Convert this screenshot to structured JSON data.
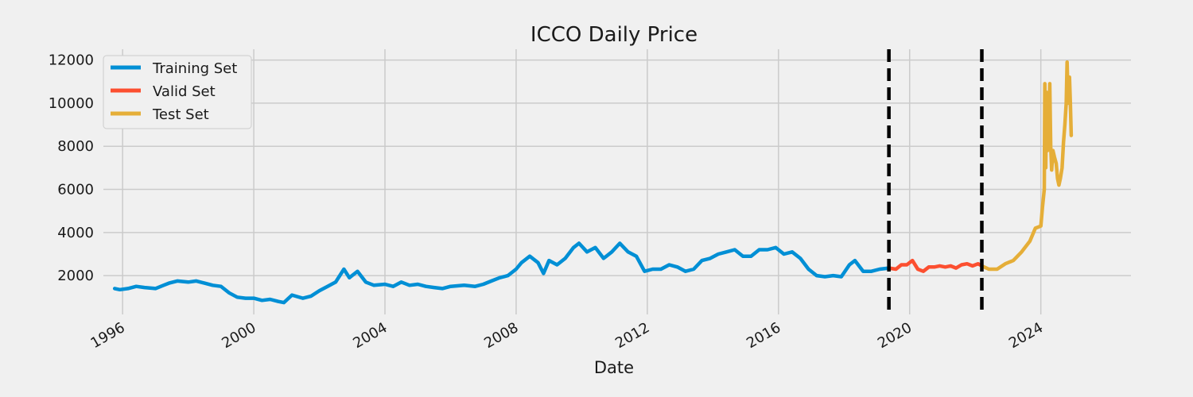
{
  "chart_data": {
    "type": "line",
    "title": "ICCO Daily Price",
    "xlabel": "Date",
    "ylabel": "",
    "x_ticks": [
      "1996",
      "2000",
      "2004",
      "2008",
      "2012",
      "2016",
      "2020",
      "2024"
    ],
    "y_ticks": [
      "2000",
      "4000",
      "6000",
      "8000",
      "10000",
      "12000"
    ],
    "xlim": [
      "1995-06-01",
      "2026-10-01"
    ],
    "ylim": [
      200,
      12500
    ],
    "grid": true,
    "legend_position": "top-left",
    "split_markers": [
      "2019-05-15",
      "2022-03-15"
    ],
    "series": [
      {
        "name": "Training Set",
        "color": "#008fd5",
        "points": [
          [
            "1995-10-05",
            1400
          ],
          [
            "1995-12-01",
            1350
          ],
          [
            "1996-03-01",
            1400
          ],
          [
            "1996-06-01",
            1500
          ],
          [
            "1996-09-01",
            1450
          ],
          [
            "1997-01-01",
            1400
          ],
          [
            "1997-04-01",
            1550
          ],
          [
            "1997-06-01",
            1650
          ],
          [
            "1997-09-01",
            1750
          ],
          [
            "1998-01-01",
            1700
          ],
          [
            "1998-04-01",
            1750
          ],
          [
            "1998-07-01",
            1650
          ],
          [
            "1998-10-01",
            1550
          ],
          [
            "1999-01-01",
            1500
          ],
          [
            "1999-04-01",
            1200
          ],
          [
            "1999-07-01",
            1000
          ],
          [
            "1999-10-01",
            950
          ],
          [
            "2000-01-01",
            950
          ],
          [
            "2000-04-01",
            850
          ],
          [
            "2000-07-01",
            900
          ],
          [
            "2000-10-01",
            800
          ],
          [
            "2000-12-01",
            750
          ],
          [
            "2001-03-01",
            1100
          ],
          [
            "2001-07-01",
            950
          ],
          [
            "2001-10-01",
            1050
          ],
          [
            "2002-01-01",
            1300
          ],
          [
            "2002-04-01",
            1500
          ],
          [
            "2002-07-01",
            1700
          ],
          [
            "2002-10-01",
            2300
          ],
          [
            "2002-12-01",
            1900
          ],
          [
            "2003-03-01",
            2200
          ],
          [
            "2003-06-01",
            1700
          ],
          [
            "2003-09-01",
            1550
          ],
          [
            "2004-01-01",
            1600
          ],
          [
            "2004-04-01",
            1500
          ],
          [
            "2004-07-01",
            1700
          ],
          [
            "2004-10-01",
            1550
          ],
          [
            "2005-01-01",
            1600
          ],
          [
            "2005-04-01",
            1500
          ],
          [
            "2005-07-01",
            1450
          ],
          [
            "2005-10-01",
            1400
          ],
          [
            "2006-01-01",
            1500
          ],
          [
            "2006-06-01",
            1550
          ],
          [
            "2006-10-01",
            1500
          ],
          [
            "2007-01-01",
            1600
          ],
          [
            "2007-04-01",
            1750
          ],
          [
            "2007-07-01",
            1900
          ],
          [
            "2007-10-01",
            2000
          ],
          [
            "2008-01-01",
            2300
          ],
          [
            "2008-03-01",
            2600
          ],
          [
            "2008-06-01",
            2900
          ],
          [
            "2008-09-01",
            2600
          ],
          [
            "2008-11-01",
            2100
          ],
          [
            "2009-01-01",
            2700
          ],
          [
            "2009-04-01",
            2500
          ],
          [
            "2009-07-01",
            2800
          ],
          [
            "2009-10-01",
            3300
          ],
          [
            "2009-12-01",
            3500
          ],
          [
            "2010-03-01",
            3100
          ],
          [
            "2010-06-01",
            3300
          ],
          [
            "2010-09-01",
            2800
          ],
          [
            "2010-12-01",
            3100
          ],
          [
            "2011-03-01",
            3500
          ],
          [
            "2011-06-01",
            3100
          ],
          [
            "2011-09-01",
            2900
          ],
          [
            "2011-12-01",
            2200
          ],
          [
            "2012-03-01",
            2300
          ],
          [
            "2012-06-01",
            2300
          ],
          [
            "2012-09-01",
            2500
          ],
          [
            "2012-12-01",
            2400
          ],
          [
            "2013-03-01",
            2200
          ],
          [
            "2013-06-01",
            2300
          ],
          [
            "2013-09-01",
            2700
          ],
          [
            "2013-12-01",
            2800
          ],
          [
            "2014-03-01",
            3000
          ],
          [
            "2014-06-01",
            3100
          ],
          [
            "2014-09-01",
            3200
          ],
          [
            "2014-12-01",
            2900
          ],
          [
            "2015-03-01",
            2900
          ],
          [
            "2015-06-01",
            3200
          ],
          [
            "2015-09-01",
            3200
          ],
          [
            "2015-12-01",
            3300
          ],
          [
            "2016-03-01",
            3000
          ],
          [
            "2016-06-01",
            3100
          ],
          [
            "2016-09-01",
            2800
          ],
          [
            "2016-12-01",
            2300
          ],
          [
            "2017-03-01",
            2000
          ],
          [
            "2017-06-01",
            1950
          ],
          [
            "2017-09-01",
            2000
          ],
          [
            "2017-12-01",
            1950
          ],
          [
            "2018-03-01",
            2500
          ],
          [
            "2018-05-01",
            2700
          ],
          [
            "2018-08-01",
            2200
          ],
          [
            "2018-11-01",
            2200
          ],
          [
            "2019-02-01",
            2300
          ],
          [
            "2019-05-15",
            2350
          ]
        ]
      },
      {
        "name": "Valid Set",
        "color": "#fc4f30",
        "points": [
          [
            "2019-05-15",
            2350
          ],
          [
            "2019-08-01",
            2300
          ],
          [
            "2019-10-01",
            2500
          ],
          [
            "2019-12-01",
            2500
          ],
          [
            "2020-02-01",
            2700
          ],
          [
            "2020-04-01",
            2300
          ],
          [
            "2020-06-01",
            2200
          ],
          [
            "2020-08-01",
            2400
          ],
          [
            "2020-10-01",
            2400
          ],
          [
            "2020-12-01",
            2450
          ],
          [
            "2021-02-01",
            2400
          ],
          [
            "2021-04-01",
            2450
          ],
          [
            "2021-06-01",
            2350
          ],
          [
            "2021-08-01",
            2500
          ],
          [
            "2021-10-01",
            2550
          ],
          [
            "2021-12-01",
            2450
          ],
          [
            "2022-02-01",
            2550
          ],
          [
            "2022-03-15",
            2450
          ]
        ]
      },
      {
        "name": "Test Set",
        "color": "#e5ae38",
        "points": [
          [
            "2022-03-15",
            2450
          ],
          [
            "2022-06-01",
            2300
          ],
          [
            "2022-09-01",
            2300
          ],
          [
            "2022-12-01",
            2550
          ],
          [
            "2023-03-01",
            2700
          ],
          [
            "2023-06-01",
            3100
          ],
          [
            "2023-09-01",
            3600
          ],
          [
            "2023-11-01",
            4200
          ],
          [
            "2024-01-01",
            4300
          ],
          [
            "2024-01-20",
            5200
          ],
          [
            "2024-02-08",
            6000
          ],
          [
            "2024-02-15",
            10900
          ],
          [
            "2024-02-25",
            7000
          ],
          [
            "2024-03-05",
            10500
          ],
          [
            "2024-03-15",
            7800
          ],
          [
            "2024-04-01",
            9000
          ],
          [
            "2024-04-10",
            10900
          ],
          [
            "2024-04-20",
            8000
          ],
          [
            "2024-05-01",
            6900
          ],
          [
            "2024-05-15",
            7800
          ],
          [
            "2024-06-01",
            7500
          ],
          [
            "2024-06-20",
            7200
          ],
          [
            "2024-07-05",
            6500
          ],
          [
            "2024-07-20",
            6200
          ],
          [
            "2024-08-05",
            6500
          ],
          [
            "2024-08-25",
            7000
          ],
          [
            "2024-09-10",
            8200
          ],
          [
            "2024-09-25",
            9000
          ],
          [
            "2024-10-10",
            10000
          ],
          [
            "2024-10-20",
            11900
          ],
          [
            "2024-11-01",
            10000
          ],
          [
            "2024-11-15",
            11200
          ],
          [
            "2024-11-25",
            10000
          ],
          [
            "2024-12-05",
            8500
          ]
        ]
      }
    ]
  }
}
